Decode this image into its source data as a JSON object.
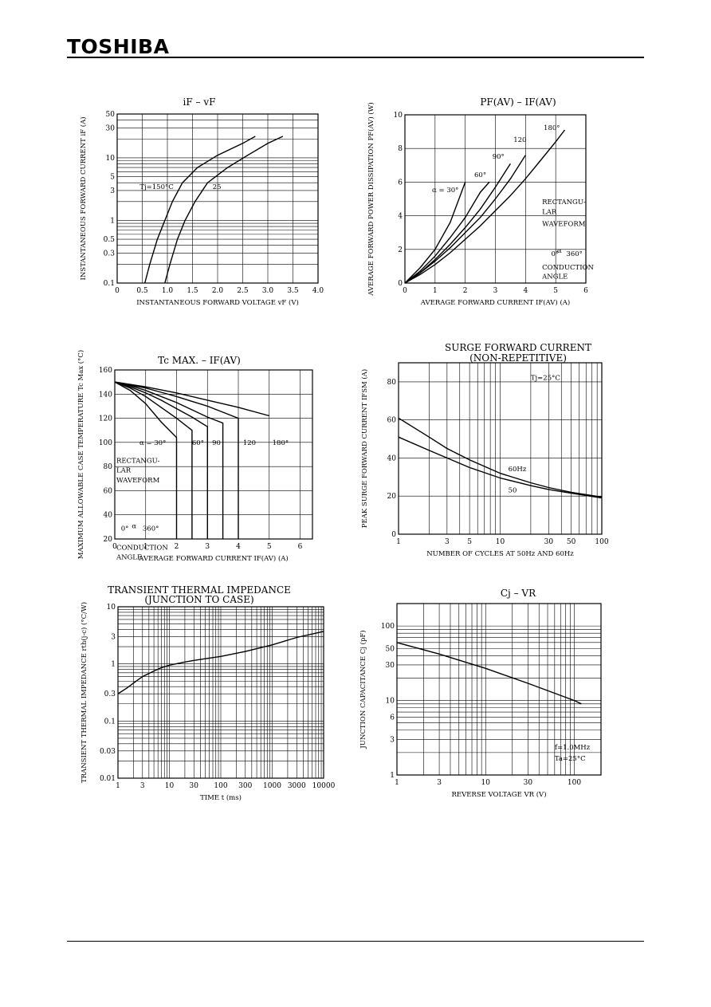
{
  "header": {
    "brand": "TOSHIBA"
  },
  "chart_data": [
    {
      "type": "line",
      "title": "iF – vF",
      "xlabel": "INSTANTANEOUS FORWARD VOLTAGE   vF   (V)",
      "ylabel": "INSTANTANEOUS FORWARD CURRENT   iF   (A)",
      "xscale": "linear",
      "yscale": "log",
      "xlim": [
        0,
        4.0
      ],
      "ylim": [
        0.1,
        50
      ],
      "xticks": [
        0,
        0.5,
        1.0,
        1.5,
        2.0,
        2.5,
        3.0,
        3.5,
        4.0
      ],
      "xtick_labels": [
        "0",
        "0.5",
        "1.0",
        "1.5",
        "2.0",
        "2.5",
        "3.0",
        "3.5",
        "4.0"
      ],
      "yticks": [
        0.1,
        0.3,
        0.5,
        1,
        3,
        5,
        10,
        30,
        50
      ],
      "ytick_labels": [
        "0.1",
        "0.3",
        "0.5",
        "1",
        "3",
        "5",
        "10",
        "30",
        "50"
      ],
      "annotations": [
        {
          "text": "Tj=150°C",
          "x": 0.45,
          "y": 3.2
        },
        {
          "text": "25",
          "x": 1.9,
          "y": 3.2
        }
      ],
      "series": [
        {
          "values": [
            [
              0.55,
              0.1
            ],
            [
              0.65,
              0.2
            ],
            [
              0.8,
              0.5
            ],
            [
              0.95,
              1
            ],
            [
              1.1,
              2
            ],
            [
              1.3,
              4
            ],
            [
              1.6,
              7
            ],
            [
              2.0,
              11
            ],
            [
              2.5,
              17
            ],
            [
              2.75,
              22
            ]
          ]
        },
        {
          "values": [
            [
              0.95,
              0.1
            ],
            [
              1.05,
              0.2
            ],
            [
              1.2,
              0.5
            ],
            [
              1.35,
              1
            ],
            [
              1.55,
              2
            ],
            [
              1.8,
              4
            ],
            [
              2.2,
              7
            ],
            [
              2.6,
              11
            ],
            [
              3.0,
              17
            ],
            [
              3.3,
              22
            ]
          ]
        }
      ]
    },
    {
      "type": "line",
      "title": "PF(AV) – IF(AV)",
      "xlabel": "AVERAGE FORWARD CURRENT   IF(AV)   (A)",
      "ylabel": "AVERAGE FORWARD POWER DISSIPATION   PF(AV)   (W)",
      "xlim": [
        0,
        6
      ],
      "ylim": [
        0,
        10
      ],
      "xticks": [
        0,
        1,
        2,
        3,
        4,
        5,
        6
      ],
      "yticks": [
        0,
        2,
        4,
        6,
        8,
        10
      ],
      "annotations": [
        {
          "text": "α = 30°",
          "x": 0.9,
          "y": 5.4
        },
        {
          "text": "60°",
          "x": 2.3,
          "y": 6.3
        },
        {
          "text": "90°",
          "x": 2.9,
          "y": 7.4
        },
        {
          "text": "120",
          "x": 3.6,
          "y": 8.4
        },
        {
          "text": "180°",
          "x": 4.6,
          "y": 9.1
        },
        {
          "text": "RECTANGU-",
          "x": 4.55,
          "y": 4.7
        },
        {
          "text": "LAR",
          "x": 4.55,
          "y": 4.1
        },
        {
          "text": "WAVEFORM",
          "x": 4.55,
          "y": 3.4
        },
        {
          "text": "0°",
          "x": 4.85,
          "y": 1.6
        },
        {
          "text": "α",
          "x": 5.05,
          "y": 1.8
        },
        {
          "text": "360°",
          "x": 5.35,
          "y": 1.6
        },
        {
          "text": "CONDUCTION",
          "x": 4.55,
          "y": 0.8
        },
        {
          "text": "ANGLE",
          "x": 4.55,
          "y": 0.25
        }
      ],
      "series": [
        {
          "name": "30°",
          "values": [
            [
              0,
              0
            ],
            [
              0.5,
              0.9
            ],
            [
              1.0,
              2.0
            ],
            [
              1.5,
              3.6
            ],
            [
              2.0,
              6.0
            ]
          ]
        },
        {
          "name": "60°",
          "values": [
            [
              0,
              0
            ],
            [
              0.5,
              0.7
            ],
            [
              1.0,
              1.6
            ],
            [
              1.5,
              2.7
            ],
            [
              2.0,
              3.9
            ],
            [
              2.5,
              5.4
            ],
            [
              2.8,
              6.0
            ]
          ]
        },
        {
          "name": "90°",
          "values": [
            [
              0,
              0
            ],
            [
              0.5,
              0.6
            ],
            [
              1.0,
              1.4
            ],
            [
              1.5,
              2.3
            ],
            [
              2.0,
              3.3
            ],
            [
              2.5,
              4.4
            ],
            [
              3.0,
              5.7
            ],
            [
              3.5,
              7.1
            ]
          ]
        },
        {
          "name": "120",
          "values": [
            [
              0,
              0
            ],
            [
              0.5,
              0.6
            ],
            [
              1.0,
              1.3
            ],
            [
              1.5,
              2.1
            ],
            [
              2.0,
              3.0
            ],
            [
              2.5,
              3.9
            ],
            [
              3.0,
              5.0
            ],
            [
              3.5,
              6.2
            ],
            [
              4.0,
              7.6
            ]
          ]
        },
        {
          "name": "180°",
          "values": [
            [
              0,
              0
            ],
            [
              0.5,
              0.5
            ],
            [
              1.0,
              1.1
            ],
            [
              1.5,
              1.8
            ],
            [
              2.0,
              2.6
            ],
            [
              2.5,
              3.4
            ],
            [
              3.0,
              4.3
            ],
            [
              3.5,
              5.2
            ],
            [
              4.0,
              6.2
            ],
            [
              4.5,
              7.3
            ],
            [
              5.0,
              8.4
            ],
            [
              5.3,
              9.1
            ]
          ]
        }
      ]
    },
    {
      "type": "line",
      "title": "Tc MAX. – IF(AV)",
      "xlabel": "AVERAGE FORWARD CURRENT   IF(AV)   (A)",
      "ylabel": "MAXIMUM ALLOWABLE CASE TEMPERATURE   Tc  Max  (°C)",
      "xlim": [
        0,
        6.4
      ],
      "ylim": [
        20,
        160
      ],
      "xticks": [
        0,
        1,
        2,
        3,
        4,
        5,
        6
      ],
      "yticks": [
        20,
        40,
        60,
        80,
        100,
        120,
        140,
        160
      ],
      "annotations": [
        {
          "text": "α = 30°",
          "x": 0.8,
          "y": 98
        },
        {
          "text": "60°",
          "x": 2.5,
          "y": 98
        },
        {
          "text": "90",
          "x": 3.15,
          "y": 98
        },
        {
          "text": "120",
          "x": 4.15,
          "y": 98
        },
        {
          "text": "180°",
          "x": 5.1,
          "y": 98
        },
        {
          "text": "RECTANGU-",
          "x": 0.05,
          "y": 83
        },
        {
          "text": "LAR",
          "x": 0.05,
          "y": 75
        },
        {
          "text": "WAVEFORM",
          "x": 0.05,
          "y": 67
        },
        {
          "text": "0°",
          "x": 0.2,
          "y": 27
        },
        {
          "text": "α",
          "x": 0.55,
          "y": 29
        },
        {
          "text": "360°",
          "x": 0.9,
          "y": 27
        },
        {
          "text": "CONDUCTION",
          "x": 0.05,
          "y": 11
        },
        {
          "text": "ANGLE",
          "x": 0.05,
          "y": 3
        }
      ],
      "series": [
        {
          "name": "30°",
          "values": [
            [
              0,
              150
            ],
            [
              0.5,
              143
            ],
            [
              1.0,
              132
            ],
            [
              1.5,
              117
            ],
            [
              2.0,
              104
            ],
            [
              2.0,
              20
            ]
          ]
        },
        {
          "name": "60°",
          "values": [
            [
              0,
              150
            ],
            [
              0.5,
              145
            ],
            [
              1.0,
              138
            ],
            [
              1.5,
              129
            ],
            [
              2.0,
              120
            ],
            [
              2.5,
              110
            ],
            [
              2.5,
              20
            ]
          ]
        },
        {
          "name": "90",
          "values": [
            [
              0,
              150
            ],
            [
              0.5,
              146
            ],
            [
              1.0,
              141
            ],
            [
              1.5,
              135
            ],
            [
              2.0,
              128
            ],
            [
              2.5,
              121
            ],
            [
              3.0,
              113
            ],
            [
              3.0,
              20
            ]
          ]
        },
        {
          "name": "120",
          "values": [
            [
              0,
              150
            ],
            [
              0.5,
              147
            ],
            [
              1.0,
              143
            ],
            [
              1.5,
              138
            ],
            [
              2.0,
              133
            ],
            [
              2.5,
              127
            ],
            [
              3.0,
              121
            ],
            [
              3.5,
              116
            ],
            [
              3.5,
              20
            ]
          ]
        },
        {
          "name": "180°",
          "values": [
            [
              0,
              150
            ],
            [
              0.5,
              147.5
            ],
            [
              1.0,
              145
            ],
            [
              1.5,
              141.5
            ],
            [
              2.0,
              138
            ],
            [
              2.5,
              134
            ],
            [
              3.0,
              130
            ],
            [
              3.5,
              125
            ],
            [
              4.0,
              120
            ],
            [
              4.0,
              20
            ]
          ]
        },
        {
          "name": "180° upper",
          "values": [
            [
              0,
              150
            ],
            [
              1.0,
              146
            ],
            [
              2.0,
              141
            ],
            [
              3.0,
              135
            ],
            [
              4.0,
              129
            ],
            [
              5.0,
              122
            ]
          ]
        }
      ]
    },
    {
      "type": "line",
      "title": "SURGE FORWARD CURRENT",
      "subtitle": "(NON-REPETITIVE)",
      "xlabel": "NUMBER OF CYCLES AT 50Hz AND 60Hz",
      "ylabel": "PEAK SURGE FORWARD CURRENT   IFSM   (A)",
      "xscale": "log",
      "xlim": [
        1,
        100
      ],
      "ylim": [
        0,
        90
      ],
      "xticks": [
        1,
        3,
        5,
        10,
        30,
        50,
        100
      ],
      "yticks": [
        0,
        20,
        40,
        60,
        80
      ],
      "annotations": [
        {
          "text": "Tj=25°C",
          "x": 20,
          "y": 81
        },
        {
          "text": "60Hz",
          "x": 12,
          "y": 33
        },
        {
          "text": "50",
          "x": 12,
          "y": 22
        }
      ],
      "series": [
        {
          "name": "60Hz",
          "values": [
            [
              1,
              61
            ],
            [
              2,
              51
            ],
            [
              3,
              45
            ],
            [
              5,
              39
            ],
            [
              10,
              32
            ],
            [
              20,
              27
            ],
            [
              30,
              24.5
            ],
            [
              50,
              22
            ],
            [
              100,
              19.5
            ]
          ]
        },
        {
          "name": "50",
          "values": [
            [
              1,
              51
            ],
            [
              2,
              44
            ],
            [
              3,
              40
            ],
            [
              5,
              35
            ],
            [
              10,
              29.5
            ],
            [
              20,
              25.5
            ],
            [
              30,
              23.5
            ],
            [
              50,
              21.5
            ],
            [
              100,
              19
            ]
          ]
        }
      ]
    },
    {
      "type": "line",
      "title": "TRANSIENT THERMAL IMPEDANCE",
      "subtitle": "(JUNCTION TO CASE)",
      "xlabel": "TIME   t   (ms)",
      "ylabel": "TRANSIENT THERMAL IMPEDANCE   rth(j-c)   (°C/W)",
      "xscale": "log",
      "yscale": "log",
      "xlim": [
        1,
        10000
      ],
      "ylim": [
        0.01,
        10
      ],
      "xticks": [
        1,
        3,
        10,
        30,
        100,
        300,
        1000,
        3000,
        10000
      ],
      "yticks": [
        0.01,
        0.03,
        0.1,
        0.3,
        1,
        3,
        10
      ],
      "series": [
        {
          "values": [
            [
              1,
              0.3
            ],
            [
              1.5,
              0.38
            ],
            [
              2,
              0.46
            ],
            [
              3,
              0.6
            ],
            [
              5,
              0.75
            ],
            [
              7,
              0.86
            ],
            [
              10,
              0.95
            ],
            [
              20,
              1.08
            ],
            [
              30,
              1.15
            ],
            [
              100,
              1.35
            ],
            [
              300,
              1.65
            ],
            [
              1000,
              2.15
            ],
            [
              3000,
              2.9
            ],
            [
              10000,
              3.7
            ]
          ]
        }
      ]
    },
    {
      "type": "line",
      "title": "Cj – VR",
      "xlabel": "REVERSE VOLTAGE   VR   (V)",
      "ylabel": "JUNCTION CAPACITANCE   Cj   (pF)",
      "xscale": "log",
      "yscale": "log",
      "xlim": [
        1,
        200
      ],
      "ylim": [
        1,
        200
      ],
      "xticks": [
        1,
        3,
        10,
        30,
        100
      ],
      "yticks": [
        1,
        3,
        6,
        10,
        30,
        50,
        100
      ],
      "annotations": [
        {
          "text": "f=1.0MHz",
          "x": 60,
          "y": 2.2
        },
        {
          "text": "Ta=25°C",
          "x": 60,
          "y": 1.55
        }
      ],
      "series": [
        {
          "values": [
            [
              1,
              60
            ],
            [
              3,
              42
            ],
            [
              10,
              27
            ],
            [
              30,
              17
            ],
            [
              100,
              10
            ],
            [
              120,
              9
            ]
          ]
        }
      ]
    }
  ]
}
